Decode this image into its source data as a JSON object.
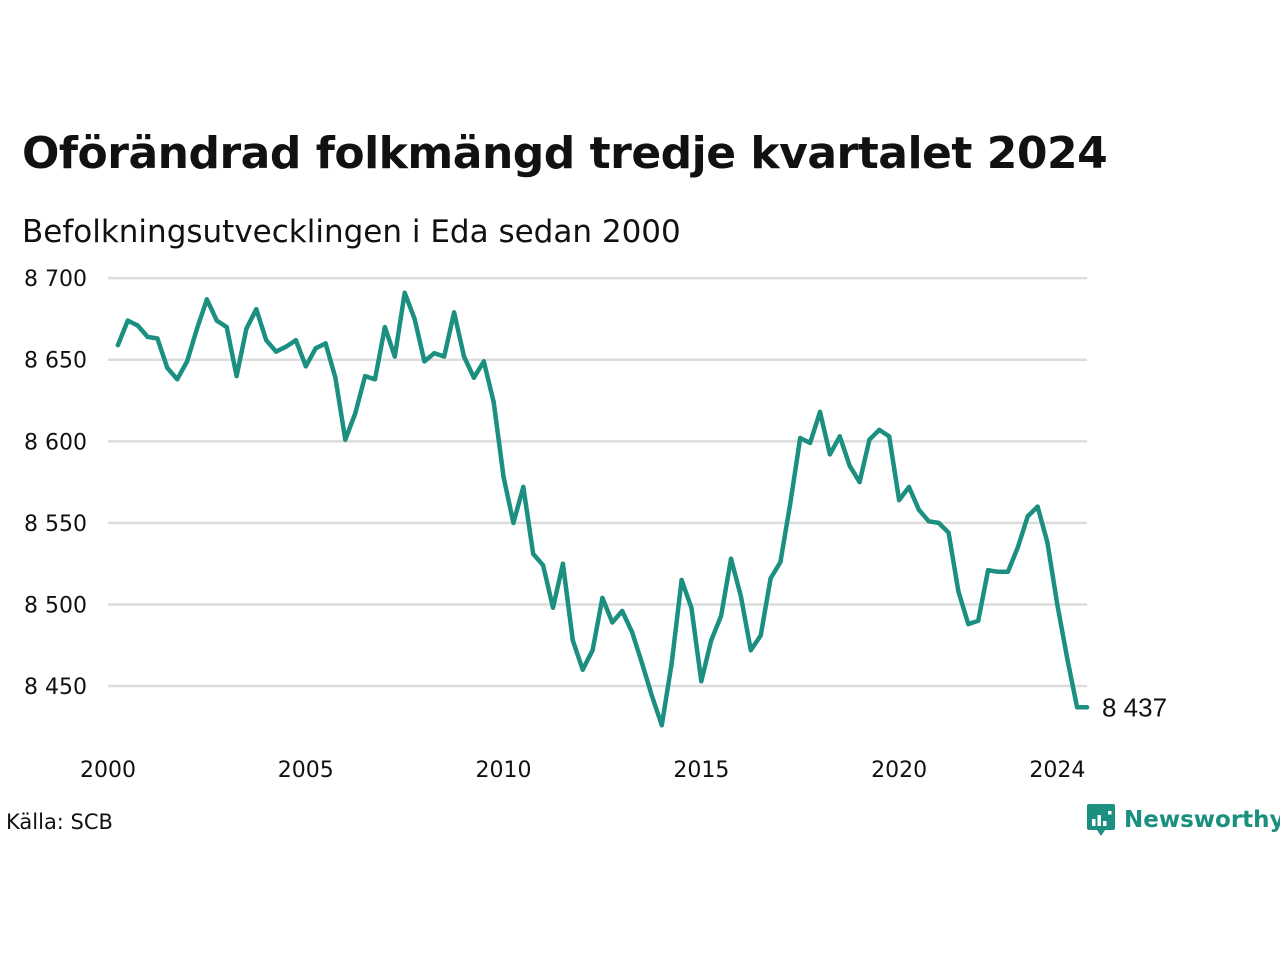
{
  "header": {
    "title": "Oförändrad folkmängd tredje kvartalet 2024",
    "subtitle": "Befolkningsutvecklingen i Eda sedan 2000"
  },
  "footer": {
    "source": "Källa: SCB",
    "brand": "Newsworthy",
    "brand_color": "#1b8f80"
  },
  "chart_data": {
    "type": "line",
    "title": "Oförändrad folkmängd tredje kvartalet 2024",
    "subtitle": "Befolkningsutvecklingen i Eda sedan 2000",
    "xlabel": "",
    "ylabel": "",
    "xlim": [
      2000,
      2024.75
    ],
    "ylim": [
      8420,
      8705
    ],
    "x_ticks": [
      {
        "value": 2000,
        "label": "2000"
      },
      {
        "value": 2005,
        "label": "2005"
      },
      {
        "value": 2010,
        "label": "2010"
      },
      {
        "value": 2015,
        "label": "2015"
      },
      {
        "value": 2020,
        "label": "2020"
      },
      {
        "value": 2024,
        "label": "2024"
      }
    ],
    "y_ticks": [
      {
        "value": 8450,
        "label": "8 450"
      },
      {
        "value": 8500,
        "label": "8 500"
      },
      {
        "value": 8550,
        "label": "8 550"
      },
      {
        "value": 8600,
        "label": "8 600"
      },
      {
        "value": 8650,
        "label": "8 650"
      },
      {
        "value": 8700,
        "label": "8 700"
      }
    ],
    "grid": true,
    "line_color": "#1b8f80",
    "end_label": "8 437",
    "series": [
      {
        "x": [
          2000.25,
          2000.5,
          2000.75,
          2001,
          2001.25,
          2001.5,
          2001.75,
          2002,
          2002.25,
          2002.5,
          2002.75,
          2003,
          2003.25,
          2003.5,
          2003.75,
          2004,
          2004.25,
          2004.5,
          2004.75,
          2005,
          2005.25,
          2005.5,
          2005.75,
          2006,
          2006.25,
          2006.5,
          2006.75,
          2007,
          2007.25,
          2007.5,
          2007.75,
          2008,
          2008.25,
          2008.5,
          2008.75,
          2009,
          2009.25,
          2009.5,
          2009.75,
          2010,
          2010.25,
          2010.5,
          2010.75,
          2011,
          2011.25,
          2011.5,
          2011.75,
          2012,
          2012.25,
          2012.5,
          2012.75,
          2013,
          2013.25,
          2013.5,
          2013.75,
          2014,
          2014.25,
          2014.5,
          2014.75,
          2015,
          2015.25,
          2015.5,
          2015.75,
          2016,
          2016.25,
          2016.5,
          2016.75,
          2017,
          2017.25,
          2017.5,
          2017.75,
          2018,
          2018.25,
          2018.5,
          2018.75,
          2019,
          2019.25,
          2019.5,
          2019.75,
          2020,
          2020.25,
          2020.5,
          2020.75,
          2021,
          2021.25,
          2021.5,
          2021.75,
          2022,
          2022.25,
          2022.5,
          2022.75,
          2023,
          2023.25,
          2023.5,
          2023.75,
          2024,
          2024.25,
          2024.5,
          2024.75
        ],
        "values": [
          8659,
          8674,
          8671,
          8664,
          8663,
          8645,
          8638,
          8649,
          8669,
          8687,
          8674,
          8670,
          8640,
          8669,
          8681,
          8662,
          8655,
          8658,
          8662,
          8646,
          8657,
          8660,
          8639,
          8601,
          8617,
          8640,
          8638,
          8670,
          8652,
          8691,
          8675,
          8649,
          8654,
          8652,
          8679,
          8652,
          8639,
          8649,
          8624,
          8578,
          8550,
          8572,
          8531,
          8524,
          8498,
          8525,
          8478,
          8460,
          8472,
          8504,
          8489,
          8496,
          8483,
          8464,
          8444,
          8426,
          8464,
          8515,
          8498,
          8453,
          8478,
          8493,
          8528,
          8505,
          8472,
          8481,
          8516,
          8526,
          8562,
          8602,
          8599,
          8618,
          8592,
          8603,
          8585,
          8575,
          8601,
          8607,
          8603,
          8564,
          8572,
          8558,
          8551,
          8550,
          8544,
          8508,
          8488,
          8490,
          8521,
          8520,
          8520,
          8535,
          8554,
          8560,
          8538,
          8500,
          8467,
          8437,
          8437
        ]
      }
    ]
  }
}
